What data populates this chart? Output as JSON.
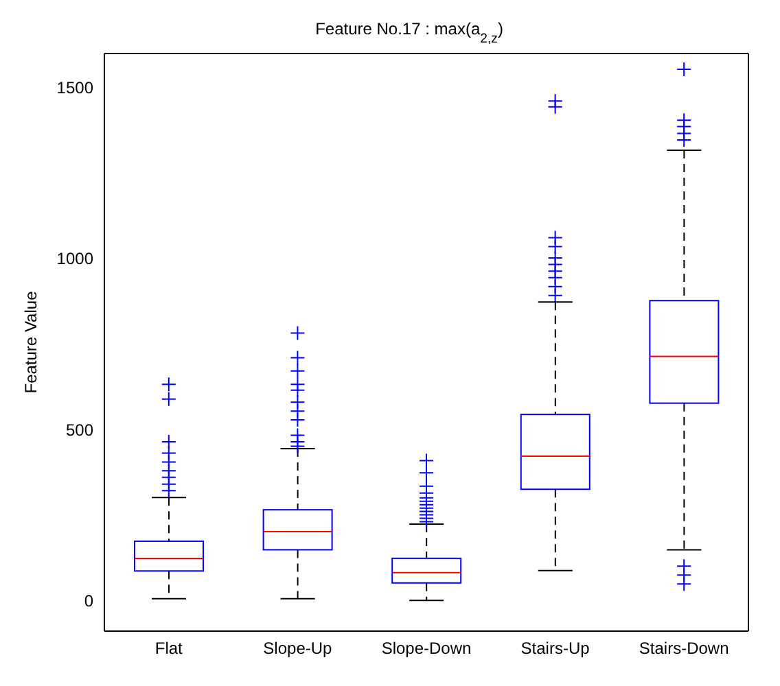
{
  "chart_data": {
    "type": "box",
    "title": "Feature No.17 : max(a$_{2,z}$)",
    "ylabel": "Feature Value",
    "categories": [
      "Flat",
      "Slope-Up",
      "Slope-Down",
      "Stairs-Up",
      "Stairs-Down"
    ],
    "ylim": [
      -90,
      1600
    ],
    "yticks": [
      0,
      500,
      1000,
      1500
    ],
    "marker": "cross",
    "series": [
      {
        "color": "#0000ff",
        "boxes": [
          {
            "low": 5,
            "q1": 86,
            "median": 123,
            "q3": 173,
            "high": 301,
            "outliers": [
              321,
              340,
              360,
              379,
              405,
              431,
              464,
              589,
              632
            ]
          },
          {
            "low": 5,
            "q1": 148,
            "median": 201,
            "q3": 265,
            "high": 444,
            "outliers": [
              451,
              464,
              483,
              528,
              554,
              580,
              615,
              632,
              671,
              710,
              782
            ]
          },
          {
            "low": 0,
            "q1": 51,
            "median": 81,
            "q3": 123,
            "high": 223,
            "outliers": [
              230,
              240,
              250,
              260,
              270,
              280,
              290,
              300,
              314,
              334,
              373,
              409
            ]
          },
          {
            "low": 87,
            "q1": 325,
            "median": 422,
            "q3": 544,
            "high": 873,
            "outliers": [
              892,
              918,
              944,
              963,
              983,
              1002,
              1035,
              1061,
              1444,
              1461
            ]
          },
          {
            "low": 148,
            "q1": 577,
            "median": 714,
            "q3": 877,
            "high": 1317,
            "outliers": [
              48,
              74,
              100,
              1347,
              1366,
              1386,
              1405,
              1554
            ]
          }
        ]
      }
    ]
  }
}
